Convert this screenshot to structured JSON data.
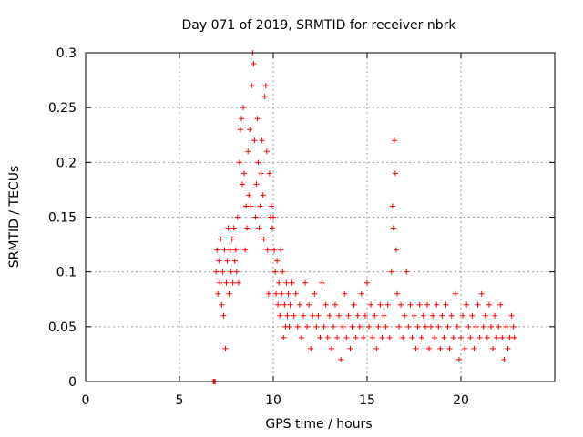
{
  "chart_data": {
    "type": "scatter",
    "title": "Day 071 of 2019, SRMTID for receiver nbrk",
    "xlabel": "GPS time / hours",
    "ylabel": "SRMTID / TECUs",
    "xlim": [
      0,
      25
    ],
    "ylim": [
      0,
      0.3
    ],
    "x_ticks": [
      0,
      5,
      10,
      15,
      20
    ],
    "x_tick_labels": [
      "0",
      "5",
      "10",
      "15",
      "20"
    ],
    "y_ticks": [
      0,
      0.05,
      0.1,
      0.15,
      0.2,
      0.25,
      0.3
    ],
    "y_tick_labels": [
      "0",
      "0.05",
      "0.1",
      "0.15",
      "0.2",
      "0.25",
      "0.3"
    ],
    "grid": true,
    "marker": "plus",
    "series": [
      {
        "name": "SRMTID",
        "color": "#ff0000",
        "points": [
          [
            6.8,
            0.0
          ],
          [
            6.85,
            0.0
          ],
          [
            6.9,
            0.0
          ],
          [
            6.95,
            0.1
          ],
          [
            7.0,
            0.12
          ],
          [
            7.05,
            0.08
          ],
          [
            7.1,
            0.11
          ],
          [
            7.15,
            0.09
          ],
          [
            7.2,
            0.13
          ],
          [
            7.25,
            0.07
          ],
          [
            7.3,
            0.1
          ],
          [
            7.35,
            0.06
          ],
          [
            7.4,
            0.12
          ],
          [
            7.45,
            0.03
          ],
          [
            7.5,
            0.09
          ],
          [
            7.55,
            0.11
          ],
          [
            7.6,
            0.14
          ],
          [
            7.65,
            0.08
          ],
          [
            7.7,
            0.12
          ],
          [
            7.75,
            0.1
          ],
          [
            7.8,
            0.13
          ],
          [
            7.85,
            0.09
          ],
          [
            7.9,
            0.14
          ],
          [
            7.95,
            0.11
          ],
          [
            8.0,
            0.12
          ],
          [
            8.05,
            0.1
          ],
          [
            8.1,
            0.15
          ],
          [
            8.15,
            0.09
          ],
          [
            8.2,
            0.2
          ],
          [
            8.25,
            0.23
          ],
          [
            8.3,
            0.24
          ],
          [
            8.35,
            0.18
          ],
          [
            8.4,
            0.25
          ],
          [
            8.45,
            0.19
          ],
          [
            8.5,
            0.12
          ],
          [
            8.55,
            0.16
          ],
          [
            8.6,
            0.14
          ],
          [
            8.65,
            0.21
          ],
          [
            8.7,
            0.17
          ],
          [
            8.75,
            0.23
          ],
          [
            8.8,
            0.16
          ],
          [
            8.85,
            0.27
          ],
          [
            8.9,
            0.3
          ],
          [
            8.95,
            0.29
          ],
          [
            9.0,
            0.22
          ],
          [
            9.05,
            0.15
          ],
          [
            9.1,
            0.18
          ],
          [
            9.15,
            0.24
          ],
          [
            9.2,
            0.2
          ],
          [
            9.25,
            0.14
          ],
          [
            9.3,
            0.16
          ],
          [
            9.35,
            0.19
          ],
          [
            9.4,
            0.22
          ],
          [
            9.45,
            0.17
          ],
          [
            9.5,
            0.13
          ],
          [
            9.55,
            0.26
          ],
          [
            9.6,
            0.27
          ],
          [
            9.65,
            0.21
          ],
          [
            9.7,
            0.12
          ],
          [
            9.75,
            0.08
          ],
          [
            9.8,
            0.19
          ],
          [
            9.85,
            0.15
          ],
          [
            9.9,
            0.16
          ],
          [
            9.95,
            0.14
          ],
          [
            10.0,
            0.15
          ],
          [
            10.05,
            0.12
          ],
          [
            10.1,
            0.1
          ],
          [
            10.15,
            0.08
          ],
          [
            10.2,
            0.11
          ],
          [
            10.25,
            0.07
          ],
          [
            10.3,
            0.09
          ],
          [
            10.35,
            0.06
          ],
          [
            10.4,
            0.12
          ],
          [
            10.45,
            0.08
          ],
          [
            10.5,
            0.1
          ],
          [
            10.55,
            0.04
          ],
          [
            10.6,
            0.07
          ],
          [
            10.65,
            0.05
          ],
          [
            10.7,
            0.09
          ],
          [
            10.75,
            0.06
          ],
          [
            10.8,
            0.08
          ],
          [
            10.85,
            0.05
          ],
          [
            10.9,
            0.07
          ],
          [
            11.0,
            0.09
          ],
          [
            11.1,
            0.06
          ],
          [
            11.2,
            0.08
          ],
          [
            11.3,
            0.05
          ],
          [
            11.4,
            0.07
          ],
          [
            11.5,
            0.04
          ],
          [
            11.6,
            0.06
          ],
          [
            11.7,
            0.09
          ],
          [
            11.8,
            0.05
          ],
          [
            11.9,
            0.07
          ],
          [
            12.0,
            0.03
          ],
          [
            12.1,
            0.06
          ],
          [
            12.2,
            0.08
          ],
          [
            12.3,
            0.05
          ],
          [
            12.4,
            0.06
          ],
          [
            12.5,
            0.04
          ],
          [
            12.6,
            0.09
          ],
          [
            12.7,
            0.05
          ],
          [
            12.8,
            0.07
          ],
          [
            12.9,
            0.04
          ],
          [
            13.0,
            0.06
          ],
          [
            13.1,
            0.03
          ],
          [
            13.2,
            0.05
          ],
          [
            13.3,
            0.07
          ],
          [
            13.4,
            0.04
          ],
          [
            13.5,
            0.06
          ],
          [
            13.6,
            0.02
          ],
          [
            13.7,
            0.05
          ],
          [
            13.8,
            0.08
          ],
          [
            13.9,
            0.04
          ],
          [
            14.0,
            0.06
          ],
          [
            14.1,
            0.03
          ],
          [
            14.2,
            0.05
          ],
          [
            14.3,
            0.07
          ],
          [
            14.4,
            0.04
          ],
          [
            14.5,
            0.06
          ],
          [
            14.6,
            0.05
          ],
          [
            14.7,
            0.08
          ],
          [
            14.8,
            0.04
          ],
          [
            14.9,
            0.06
          ],
          [
            15.0,
            0.09
          ],
          [
            15.1,
            0.05
          ],
          [
            15.2,
            0.07
          ],
          [
            15.3,
            0.04
          ],
          [
            15.4,
            0.06
          ],
          [
            15.5,
            0.03
          ],
          [
            15.6,
            0.05
          ],
          [
            15.7,
            0.07
          ],
          [
            15.8,
            0.04
          ],
          [
            15.9,
            0.06
          ],
          [
            16.0,
            0.05
          ],
          [
            16.1,
            0.07
          ],
          [
            16.2,
            0.04
          ],
          [
            16.3,
            0.1
          ],
          [
            16.35,
            0.16
          ],
          [
            16.4,
            0.14
          ],
          [
            16.45,
            0.22
          ],
          [
            16.5,
            0.19
          ],
          [
            16.55,
            0.12
          ],
          [
            16.6,
            0.08
          ],
          [
            16.7,
            0.05
          ],
          [
            16.8,
            0.07
          ],
          [
            16.9,
            0.04
          ],
          [
            17.0,
            0.06
          ],
          [
            17.1,
            0.1
          ],
          [
            17.2,
            0.05
          ],
          [
            17.3,
            0.07
          ],
          [
            17.4,
            0.04
          ],
          [
            17.5,
            0.06
          ],
          [
            17.6,
            0.03
          ],
          [
            17.7,
            0.05
          ],
          [
            17.8,
            0.07
          ],
          [
            17.9,
            0.04
          ],
          [
            18.0,
            0.06
          ],
          [
            18.1,
            0.05
          ],
          [
            18.2,
            0.07
          ],
          [
            18.3,
            0.03
          ],
          [
            18.4,
            0.05
          ],
          [
            18.5,
            0.06
          ],
          [
            18.6,
            0.04
          ],
          [
            18.7,
            0.07
          ],
          [
            18.8,
            0.05
          ],
          [
            18.9,
            0.03
          ],
          [
            19.0,
            0.06
          ],
          [
            19.1,
            0.04
          ],
          [
            19.2,
            0.07
          ],
          [
            19.3,
            0.05
          ],
          [
            19.4,
            0.03
          ],
          [
            19.5,
            0.06
          ],
          [
            19.6,
            0.04
          ],
          [
            19.7,
            0.08
          ],
          [
            19.8,
            0.05
          ],
          [
            19.9,
            0.02
          ],
          [
            20.0,
            0.04
          ],
          [
            20.1,
            0.06
          ],
          [
            20.2,
            0.03
          ],
          [
            20.3,
            0.07
          ],
          [
            20.4,
            0.05
          ],
          [
            20.5,
            0.04
          ],
          [
            20.6,
            0.06
          ],
          [
            20.7,
            0.03
          ],
          [
            20.8,
            0.05
          ],
          [
            20.9,
            0.07
          ],
          [
            21.0,
            0.04
          ],
          [
            21.1,
            0.08
          ],
          [
            21.2,
            0.05
          ],
          [
            21.3,
            0.06
          ],
          [
            21.4,
            0.04
          ],
          [
            21.5,
            0.07
          ],
          [
            21.6,
            0.05
          ],
          [
            21.7,
            0.03
          ],
          [
            21.8,
            0.06
          ],
          [
            21.9,
            0.04
          ],
          [
            22.0,
            0.05
          ],
          [
            22.1,
            0.07
          ],
          [
            22.2,
            0.04
          ],
          [
            22.3,
            0.02
          ],
          [
            22.4,
            0.05
          ],
          [
            22.5,
            0.03
          ],
          [
            22.6,
            0.04
          ],
          [
            22.7,
            0.06
          ],
          [
            22.8,
            0.05
          ],
          [
            22.85,
            0.04
          ]
        ]
      }
    ]
  }
}
